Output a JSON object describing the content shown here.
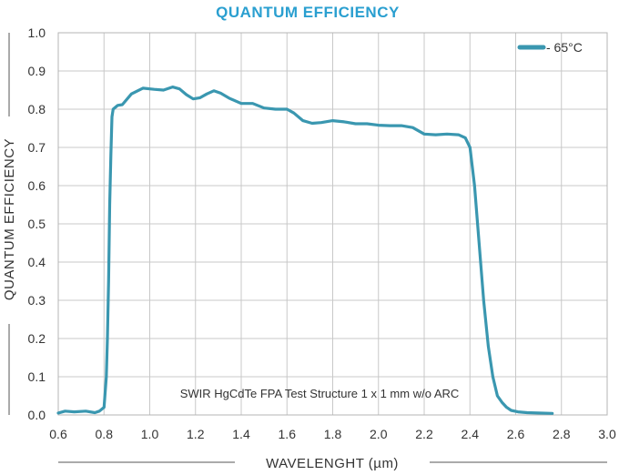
{
  "chart_data": {
    "type": "line",
    "title": "QUANTUM EFFICIENCY",
    "xlabel": "WAVELENGHT (µm)",
    "ylabel": "QUANTUM EFFICIENCY",
    "xlim": [
      0.6,
      3.0
    ],
    "ylim": [
      0.0,
      1.0
    ],
    "x_ticks": [
      "0.6",
      "0.8",
      "1.0",
      "1.2",
      "1.4",
      "1.6",
      "1.8",
      "2.0",
      "2.2",
      "2.4",
      "2.6",
      "2.8",
      "3.0"
    ],
    "y_ticks": [
      "0.0",
      "0.1",
      "0.2",
      "0.3",
      "0.4",
      "0.5",
      "0.6",
      "0.7",
      "0.8",
      "0.9",
      "1.0"
    ],
    "grid": true,
    "legend_position": "top-right",
    "annotation": "SWIR HgCdTe FPA Test Structure 1 x 1 mm w/o ARC",
    "series": [
      {
        "name": "- 65°C",
        "color": "#3a97b0",
        "x": [
          0.6,
          0.63,
          0.67,
          0.72,
          0.76,
          0.78,
          0.8,
          0.81,
          0.815,
          0.82,
          0.825,
          0.83,
          0.835,
          0.84,
          0.86,
          0.88,
          0.92,
          0.97,
          1.02,
          1.06,
          1.1,
          1.13,
          1.16,
          1.19,
          1.22,
          1.25,
          1.28,
          1.31,
          1.35,
          1.4,
          1.45,
          1.5,
          1.55,
          1.6,
          1.63,
          1.67,
          1.71,
          1.75,
          1.8,
          1.85,
          1.9,
          1.95,
          2.0,
          2.05,
          2.1,
          2.15,
          2.2,
          2.25,
          2.3,
          2.35,
          2.38,
          2.4,
          2.42,
          2.44,
          2.46,
          2.48,
          2.5,
          2.52,
          2.54,
          2.56,
          2.58,
          2.61,
          2.65,
          2.7,
          2.76
        ],
        "y": [
          0.005,
          0.01,
          0.008,
          0.01,
          0.006,
          0.01,
          0.02,
          0.1,
          0.2,
          0.35,
          0.55,
          0.68,
          0.78,
          0.8,
          0.81,
          0.812,
          0.84,
          0.855,
          0.852,
          0.85,
          0.858,
          0.853,
          0.838,
          0.827,
          0.83,
          0.84,
          0.848,
          0.842,
          0.828,
          0.815,
          0.815,
          0.803,
          0.8,
          0.8,
          0.79,
          0.77,
          0.763,
          0.765,
          0.77,
          0.767,
          0.762,
          0.762,
          0.758,
          0.757,
          0.757,
          0.752,
          0.735,
          0.733,
          0.735,
          0.733,
          0.725,
          0.7,
          0.6,
          0.45,
          0.3,
          0.18,
          0.1,
          0.05,
          0.033,
          0.02,
          0.012,
          0.008,
          0.006,
          0.005,
          0.004
        ]
      }
    ]
  }
}
